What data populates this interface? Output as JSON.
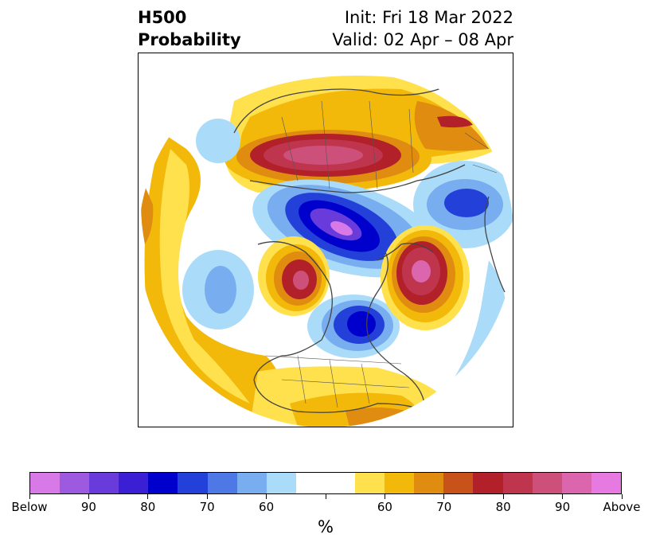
{
  "title": {
    "left_line1": "H500",
    "left_line2": "Probability",
    "right_line1": "Init: Fri 18 Mar 2022",
    "right_line2": "Valid: 02 Apr – 08 Apr"
  },
  "colorbar": {
    "unit": "%",
    "colors": [
      "#d77ae8",
      "#9d59e0",
      "#6a3bdb",
      "#3a1fd5",
      "#0000cd",
      "#2341d9",
      "#4d78e5",
      "#78aef0",
      "#aadcfa",
      "#ffffff",
      "#ffffff",
      "#ffe14d",
      "#f2b80a",
      "#e08c10",
      "#c8531a",
      "#b2202a",
      "#c0354e",
      "#cc5079",
      "#db66ad",
      "#e67ae0"
    ],
    "tick_labels": [
      "Below",
      "90",
      "80",
      "70",
      "60",
      "",
      "60",
      "70",
      "80",
      "90",
      "Above"
    ]
  },
  "map": {
    "projection": "north polar stereographic",
    "colors": {
      "above_light": "#ffe14d",
      "above_60": "#f2b80a",
      "above_70": "#e08c10",
      "above_75": "#c8531a",
      "above_80": "#b2202a",
      "above_85": "#c0354e",
      "above_90": "#cc5079",
      "above_95": "#db66ad",
      "below_light": "#aadcfa",
      "below_60": "#78aef0",
      "below_65": "#4d78e5",
      "below_70": "#2341d9",
      "below_80": "#0000cd",
      "below_85": "#3a1fd5",
      "below_90": "#6a3bdb",
      "below_95": "#9d59e0",
      "below_max": "#d77ae8"
    }
  }
}
